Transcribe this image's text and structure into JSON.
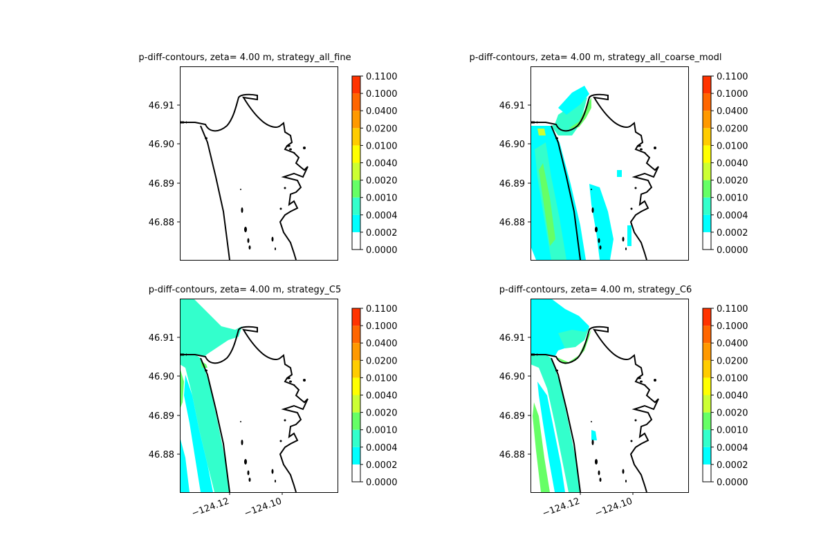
{
  "chart_data": [
    {
      "type": "contour",
      "title": "p-diff-contours, zeta= 4.00 m, strategy_all_fine",
      "y_ticks": [
        "46.91",
        "46.90",
        "46.89",
        "46.88"
      ],
      "x_ticks": [],
      "colorbar": {
        "levels": [
          "0.0000",
          "0.0002",
          "0.0004",
          "0.0010",
          "0.0020",
          "0.0040",
          "0.0100",
          "0.0200",
          "0.0400",
          "0.1000",
          "0.1100"
        ],
        "colors": [
          "#ffffff",
          "#00ffff",
          "#33ffcc",
          "#66ff66",
          "#ccff33",
          "#ffff00",
          "#ffcc00",
          "#ff9900",
          "#ff6600",
          "#ff3300",
          "#ff0000"
        ]
      },
      "fill_level": "none"
    },
    {
      "type": "contour",
      "title": "p-diff-contours, zeta= 4.00 m, strategy_all_coarse_modl",
      "y_ticks": [
        "46.91",
        "46.90",
        "46.89",
        "46.88"
      ],
      "x_ticks": [],
      "colorbar": {
        "levels": [
          "0.0000",
          "0.0002",
          "0.0004",
          "0.0010",
          "0.0020",
          "0.0040",
          "0.0100",
          "0.0200",
          "0.0400",
          "0.1000",
          "0.1100"
        ],
        "colors": [
          "#ffffff",
          "#00ffff",
          "#33ffcc",
          "#66ff66",
          "#ccff33",
          "#ffff00",
          "#ffcc00",
          "#ff9900",
          "#ff6600",
          "#ff3300",
          "#ff0000"
        ]
      },
      "fill_level": "coarse"
    },
    {
      "type": "contour",
      "title": "p-diff-contours, zeta= 4.00 m, strategy_C5",
      "y_ticks": [
        "46.91",
        "46.90",
        "46.89",
        "46.88"
      ],
      "x_ticks": [
        "−124.12",
        "−124.10"
      ],
      "colorbar": {
        "levels": [
          "0.0000",
          "0.0002",
          "0.0004",
          "0.0010",
          "0.0020",
          "0.0040",
          "0.0100",
          "0.0200",
          "0.0400",
          "0.1000",
          "0.1100"
        ],
        "colors": [
          "#ffffff",
          "#00ffff",
          "#33ffcc",
          "#66ff66",
          "#ccff33",
          "#ffff00",
          "#ffcc00",
          "#ff9900",
          "#ff6600",
          "#ff3300",
          "#ff0000"
        ]
      },
      "fill_level": "c5"
    },
    {
      "type": "contour",
      "title": "p-diff-contours, zeta= 4.00 m, strategy_C6",
      "y_ticks": [
        "46.91",
        "46.90",
        "46.89",
        "46.88"
      ],
      "x_ticks": [
        "−124.12",
        "−124.10"
      ],
      "colorbar": {
        "levels": [
          "0.0000",
          "0.0002",
          "0.0004",
          "0.0010",
          "0.0020",
          "0.0040",
          "0.0100",
          "0.0200",
          "0.0400",
          "0.1000",
          "0.1100"
        ],
        "colors": [
          "#ffffff",
          "#00ffff",
          "#33ffcc",
          "#66ff66",
          "#ccff33",
          "#ffff00",
          "#ffcc00",
          "#ff9900",
          "#ff6600",
          "#ff3300",
          "#ff0000"
        ]
      },
      "fill_level": "c6"
    }
  ]
}
